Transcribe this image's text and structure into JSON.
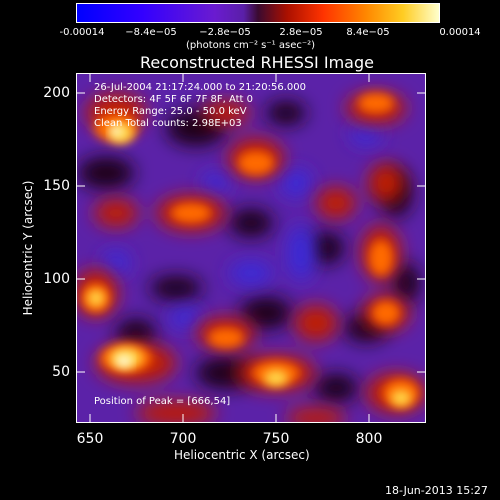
{
  "colorbar": {
    "tick_labels": [
      "-0.00014",
      "−8.4e−05",
      "−2.8e−05",
      "2.8e−05",
      "8.4e−05",
      "0.00014"
    ],
    "units_label": "(photons cm⁻² s⁻¹ asec⁻²)"
  },
  "plot": {
    "title": "Reconstructed RHESSI Image",
    "info_lines": [
      "26-Jul-2004 21:17:24.000 to 21:20:56.000",
      "Detectors: 4F 5F 6F 7F 8F, Att 0",
      "Energy Range: 25.0 - 50.0 keV",
      "Clean     Total counts: 2.98E+03"
    ],
    "peak_label": "Position of Peak = [666,54]",
    "xlabel": "Heliocentric X (arcsec)",
    "ylabel": "Heliocentric Y (arcsec)",
    "x_ticks": [
      "650",
      "700",
      "750",
      "800"
    ],
    "y_ticks": [
      "200",
      "150",
      "100",
      "50"
    ]
  },
  "footer": {
    "timestamp": "18-Jun-2013 15:27"
  }
}
